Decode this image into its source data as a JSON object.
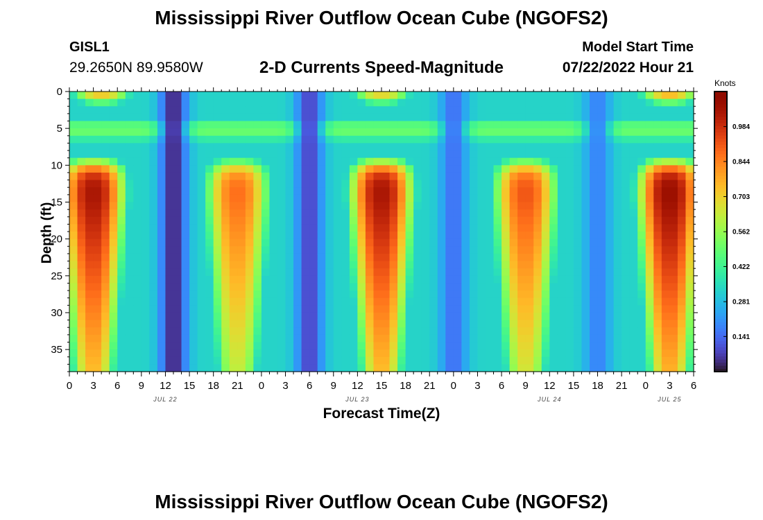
{
  "page": {
    "title": "Mississippi River Outflow Ocean Cube (NGOFS2)",
    "station": "GISL1",
    "coordinates": "29.2650N  89.9580W",
    "subtitle": "2-D Currents Speed-Magnitude",
    "model_start_label": "Model Start Time",
    "model_start_value": "07/22/2022 Hour 21",
    "units": "Knots",
    "title_repeat": "Mississippi River Outflow Ocean Cube (NGOFS2)"
  },
  "chart_data": {
    "type": "heatmap",
    "title": "2-D Currents Speed-Magnitude",
    "xlabel": "Forecast Time(Z)",
    "ylabel": "Depth (ft)",
    "x_range_hours_from_jul22_00": [
      0,
      78
    ],
    "xlim": [
      "07/22/2022 00Z",
      "07/25/2022 06Z"
    ],
    "x_tick_labels": [
      "0",
      "3",
      "6",
      "9",
      "12",
      "15",
      "18",
      "21",
      "0",
      "3",
      "6",
      "9",
      "12",
      "15",
      "18",
      "21",
      "0",
      "3",
      "6",
      "9",
      "12",
      "15",
      "18",
      "21",
      "0",
      "3",
      "6"
    ],
    "x_date_labels": [
      "JUL 22",
      "JUL 23",
      "JUL 24",
      "JUL 25"
    ],
    "ylim": [
      0,
      38
    ],
    "y_inverted": true,
    "y_ticks": [
      0,
      5,
      10,
      15,
      20,
      25,
      30,
      35
    ],
    "y_tick_labels": [
      "0",
      "5",
      "10",
      "15",
      "20",
      "25",
      "30",
      "35"
    ],
    "colorbar": {
      "label": "Knots",
      "range": [
        0,
        1.125
      ],
      "tick_values": [
        0.141,
        0.281,
        0.422,
        0.562,
        0.703,
        0.844,
        0.984
      ],
      "tick_labels": [
        "0.141",
        "0.281",
        "0.422",
        "0.562",
        "0.703",
        "0.844",
        "0.984"
      ],
      "colormap": "turbo"
    },
    "flood_lobes_below_10ft": [
      {
        "x_center": "07/22 03Z",
        "peak_knots": 1.05
      },
      {
        "x_center": "07/22 21Z",
        "peak_knots": 0.88
      },
      {
        "x_center": "07/23 15Z",
        "peak_knots": 1.05
      },
      {
        "x_center": "07/24 09Z",
        "peak_knots": 0.92
      },
      {
        "x_center": "07/25 03Z",
        "peak_knots": 1.08
      }
    ],
    "surface_lobes_above_3ft": [
      {
        "x_center": "07/22 04Z",
        "peak_knots": 0.75
      },
      {
        "x_center": "07/23 15Z",
        "peak_knots": 0.72
      },
      {
        "x_center": "07/25 03Z",
        "peak_knots": 0.78
      }
    ],
    "slack_minima": [
      {
        "x_center": "07/22 13Z",
        "min_knots": 0.03
      },
      {
        "x_center": "07/23 06Z",
        "min_knots": 0.08
      },
      {
        "x_center": "07/24 00Z",
        "min_knots": 0.15
      },
      {
        "x_center": "07/24 18Z",
        "min_knots": 0.18
      }
    ]
  }
}
